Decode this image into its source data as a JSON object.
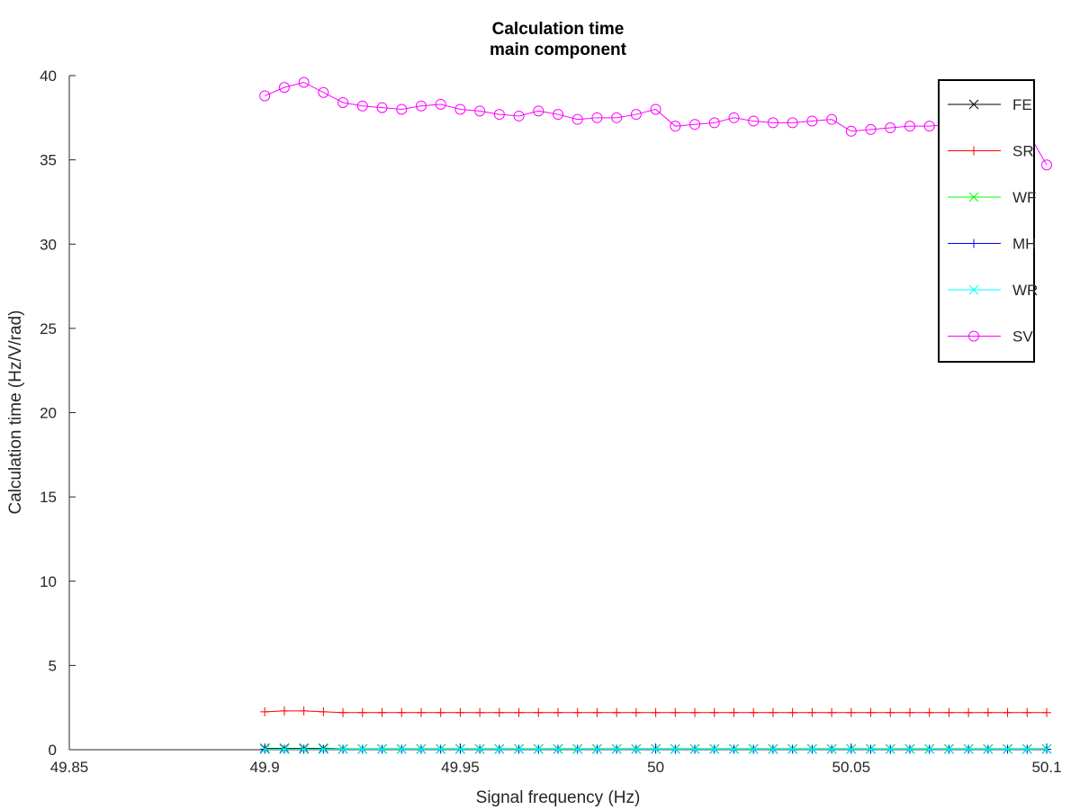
{
  "chart_data": {
    "type": "line",
    "title_lines": [
      "Calculation time",
      "main component"
    ],
    "xlabel": "Signal frequency (Hz)",
    "ylabel": "Calculation time (Hz/V/rad)",
    "xlim": [
      49.85,
      50.1
    ],
    "ylim": [
      0,
      40
    ],
    "xticks": [
      49.85,
      49.9,
      49.95,
      50,
      50.05,
      50.1
    ],
    "xtick_labels": [
      "49.85",
      "49.9",
      "49.95",
      "50",
      "50.05",
      "50.1"
    ],
    "yticks": [
      0,
      5,
      10,
      15,
      20,
      25,
      30,
      35,
      40
    ],
    "ytick_labels": [
      "0",
      "5",
      "10",
      "15",
      "20",
      "25",
      "30",
      "35",
      "40"
    ],
    "grid": false,
    "legend_position": "top-right",
    "x": [
      49.9,
      49.905,
      49.91,
      49.915,
      49.92,
      49.925,
      49.93,
      49.935,
      49.94,
      49.945,
      49.95,
      49.955,
      49.96,
      49.965,
      49.97,
      49.975,
      49.98,
      49.985,
      49.99,
      49.995,
      50.0,
      50.005,
      50.01,
      50.015,
      50.02,
      50.025,
      50.03,
      50.035,
      50.04,
      50.045,
      50.05,
      50.055,
      50.06,
      50.065,
      50.07,
      50.075,
      50.08,
      50.085,
      50.09,
      50.095,
      50.1
    ],
    "series": [
      {
        "name": "FE",
        "color": "#000000",
        "marker": "x",
        "values": [
          0.08,
          0.08,
          0.08,
          0.08,
          0.05,
          0.05,
          0.05,
          0.05,
          0.05,
          0.05,
          0.05,
          0.05,
          0.05,
          0.05,
          0.05,
          0.05,
          0.05,
          0.05,
          0.05,
          0.05,
          0.05,
          0.05,
          0.05,
          0.05,
          0.05,
          0.05,
          0.05,
          0.05,
          0.05,
          0.05,
          0.05,
          0.05,
          0.05,
          0.05,
          0.05,
          0.05,
          0.05,
          0.05,
          0.05,
          0.05,
          0.05
        ]
      },
      {
        "name": "SR",
        "color": "#ff0000",
        "marker": "+",
        "values": [
          2.25,
          2.3,
          2.3,
          2.25,
          2.2,
          2.2,
          2.2,
          2.2,
          2.2,
          2.2,
          2.2,
          2.2,
          2.2,
          2.2,
          2.2,
          2.2,
          2.2,
          2.2,
          2.2,
          2.2,
          2.2,
          2.2,
          2.2,
          2.2,
          2.2,
          2.2,
          2.2,
          2.2,
          2.2,
          2.2,
          2.2,
          2.2,
          2.2,
          2.2,
          2.2,
          2.2,
          2.2,
          2.2,
          2.2,
          2.2,
          2.2
        ]
      },
      {
        "name": "WF",
        "color": "#00ff00",
        "marker": "x",
        "values": [
          0.04,
          0.04,
          0.04,
          0.04,
          0.04,
          0.04,
          0.04,
          0.04,
          0.04,
          0.04,
          0.04,
          0.04,
          0.04,
          0.04,
          0.04,
          0.04,
          0.04,
          0.04,
          0.04,
          0.04,
          0.04,
          0.04,
          0.04,
          0.04,
          0.04,
          0.04,
          0.04,
          0.04,
          0.04,
          0.04,
          0.04,
          0.04,
          0.04,
          0.04,
          0.04,
          0.04,
          0.04,
          0.04,
          0.04,
          0.04,
          0.04
        ]
      },
      {
        "name": "MH",
        "color": "#0000ff",
        "marker": "+",
        "values": [
          0.03,
          0.03,
          0.03,
          0.03,
          0.03,
          0.03,
          0.03,
          0.03,
          0.03,
          0.03,
          0.03,
          0.03,
          0.03,
          0.03,
          0.03,
          0.03,
          0.03,
          0.03,
          0.03,
          0.03,
          0.03,
          0.03,
          0.03,
          0.03,
          0.03,
          0.03,
          0.03,
          0.03,
          0.03,
          0.03,
          0.03,
          0.03,
          0.03,
          0.03,
          0.03,
          0.03,
          0.03,
          0.03,
          0.03,
          0.03,
          0.03
        ]
      },
      {
        "name": "WR",
        "color": "#00ffff",
        "marker": "x",
        "values": [
          0.02,
          0.02,
          0.02,
          0.02,
          0.02,
          0.02,
          0.02,
          0.02,
          0.02,
          0.02,
          0.02,
          0.02,
          0.02,
          0.02,
          0.02,
          0.02,
          0.02,
          0.02,
          0.02,
          0.02,
          0.02,
          0.02,
          0.02,
          0.02,
          0.02,
          0.02,
          0.02,
          0.02,
          0.02,
          0.02,
          0.02,
          0.02,
          0.02,
          0.02,
          0.02,
          0.02,
          0.02,
          0.02,
          0.02,
          0.02,
          0.02
        ]
      },
      {
        "name": "SV",
        "color": "#ff00ff",
        "marker": "o",
        "values": [
          38.8,
          39.3,
          39.6,
          39.0,
          38.4,
          38.2,
          38.1,
          38.0,
          38.2,
          38.3,
          38.0,
          37.9,
          37.7,
          37.6,
          37.9,
          37.7,
          37.4,
          37.5,
          37.5,
          37.7,
          38.0,
          37.0,
          37.1,
          37.2,
          37.5,
          37.3,
          37.2,
          37.2,
          37.3,
          37.4,
          36.7,
          36.8,
          36.9,
          37.0,
          37.0,
          37.1,
          36.8,
          36.5,
          36.6,
          36.7,
          34.7
        ]
      }
    ]
  }
}
